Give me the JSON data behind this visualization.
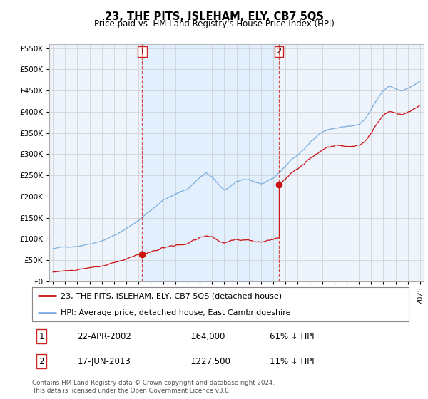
{
  "title": "23, THE PITS, ISLEHAM, ELY, CB7 5QS",
  "subtitle": "Price paid vs. HM Land Registry's House Price Index (HPI)",
  "legend_entry1": "23, THE PITS, ISLEHAM, ELY, CB7 5QS (detached house)",
  "legend_entry2": "HPI: Average price, detached house, East Cambridgeshire",
  "footer": "Contains HM Land Registry data © Crown copyright and database right 2024.\nThis data is licensed under the Open Government Licence v3.0.",
  "transaction1_date": "22-APR-2002",
  "transaction1_price": "£64,000",
  "transaction1_hpi": "61% ↓ HPI",
  "transaction2_date": "17-JUN-2013",
  "transaction2_price": "£227,500",
  "transaction2_hpi": "11% ↓ HPI",
  "hpi_color": "#7aadde",
  "price_color": "#cc1111",
  "shade_color": "#ddeeff",
  "dashed_vline_color": "#cc2222",
  "ylim": [
    0,
    560000
  ],
  "yticks": [
    0,
    50000,
    100000,
    150000,
    200000,
    250000,
    300000,
    350000,
    400000,
    450000,
    500000,
    550000
  ],
  "xlim_start": 1994.7,
  "xlim_end": 2025.3,
  "background_color": "#ffffff",
  "chart_bg_color": "#eef4fb",
  "grid_color": "#cccccc",
  "transaction1_x": 2002.3,
  "transaction1_y": 64000,
  "transaction2_x": 2013.46,
  "transaction2_y": 227500
}
